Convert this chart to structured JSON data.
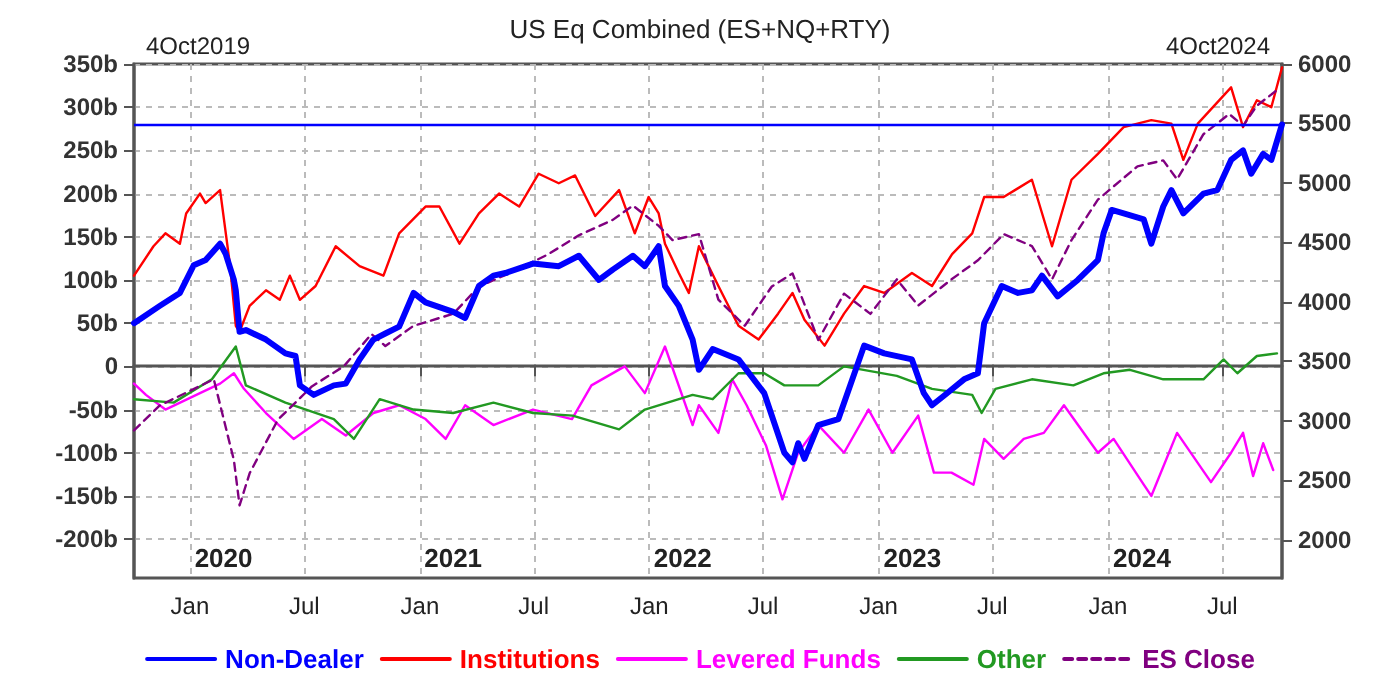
{
  "chart_data": {
    "type": "line",
    "title": "US Eq Combined (ES+NQ+RTY)",
    "xlim": [
      "2019-10-04",
      "2024-10-04"
    ],
    "xticks": [
      {
        "value": "2020-01-01",
        "label": "Jan"
      },
      {
        "value": "2020-07-01",
        "label": "Jul"
      },
      {
        "value": "2021-01-01",
        "label": "Jan"
      },
      {
        "value": "2021-07-01",
        "label": "Jul"
      },
      {
        "value": "2022-01-01",
        "label": "Jan"
      },
      {
        "value": "2022-07-01",
        "label": "Jul"
      },
      {
        "value": "2023-01-01",
        "label": "Jan"
      },
      {
        "value": "2023-07-01",
        "label": "Jul"
      },
      {
        "value": "2024-01-01",
        "label": "Jan"
      },
      {
        "value": "2024-07-01",
        "label": "Jul"
      }
    ],
    "ylim": [
      -245,
      350
    ],
    "yticks": [
      {
        "value": -200,
        "label": "-200b"
      },
      {
        "value": -150,
        "label": "-150b"
      },
      {
        "value": -100,
        "label": "-100b"
      },
      {
        "value": -50,
        "label": "-50b"
      },
      0,
      {
        "value": 50,
        "label": "50b"
      },
      {
        "value": 100,
        "label": "100b"
      },
      {
        "value": 150,
        "label": "150b"
      },
      {
        "value": 200,
        "label": "200b"
      },
      {
        "value": 250,
        "label": "250b"
      },
      {
        "value": 300,
        "label": "300b"
      },
      {
        "value": 350,
        "label": "350b"
      }
    ],
    "y2lim": [
      1680,
      6000
    ],
    "y2ticks": [
      2000,
      2500,
      3000,
      3500,
      4000,
      4500,
      5000,
      5500,
      6000
    ],
    "grid": true,
    "legend": "bottom",
    "marker": "none",
    "ref_lines": [
      {
        "axis": "y",
        "value": 280,
        "label": null,
        "color": "#0000ff"
      }
    ],
    "annotations": [
      "4Oct2019",
      "4Oct2024",
      "2020",
      "2021",
      "2022",
      "2023",
      "2024"
    ],
    "series": [
      {
        "name": "Non-Dealer",
        "color": "#0000ff",
        "x": [
          "2019-10-04",
          "2019-11-14",
          "2019-12-16",
          "2020-01-07",
          "2020-01-26",
          "2020-02-18",
          "2020-02-27",
          "2020-03-11",
          "2020-03-14",
          "2020-03-20",
          "2020-03-30",
          "2020-05-01",
          "2020-06-01",
          "2020-06-17",
          "2020-06-24",
          "2020-07-16",
          "2020-08-17",
          "2020-09-05",
          "2020-09-27",
          "2020-10-19",
          "2020-11-07",
          "2020-11-29",
          "2020-12-22",
          "2021-01-10",
          "2021-02-23",
          "2021-03-14",
          "2021-04-05",
          "2021-04-28",
          "2021-05-17",
          "2021-06-30",
          "2021-08-10",
          "2021-09-11",
          "2021-10-13",
          "2021-11-04",
          "2021-12-06",
          "2021-12-25",
          "2022-01-16",
          "2022-01-26",
          "2022-02-17",
          "2022-03-11",
          "2022-03-21",
          "2022-04-12",
          "2022-05-23",
          "2022-07-03",
          "2022-08-04",
          "2022-08-17",
          "2022-08-26",
          "2022-09-05",
          "2022-09-27",
          "2022-10-29",
          "2022-12-09",
          "2023-01-10",
          "2023-02-23",
          "2023-03-14",
          "2023-03-27",
          "2023-04-15",
          "2023-05-17",
          "2023-06-08",
          "2023-06-18",
          "2023-07-16",
          "2023-08-11",
          "2023-09-02",
          "2023-09-18",
          "2023-10-13",
          "2023-11-14",
          "2023-12-16",
          "2023-12-25",
          "2024-01-07",
          "2024-01-26",
          "2024-02-27",
          "2024-03-10",
          "2024-03-29",
          "2024-04-11",
          "2024-04-30",
          "2024-06-01",
          "2024-06-23",
          "2024-07-15",
          "2024-08-03",
          "2024-08-16",
          "2024-09-04",
          "2024-09-17",
          "2024-10-04"
        ],
        "values": [
          50,
          70,
          85,
          117,
          123,
          142,
          130,
          100,
          88,
          40,
          42,
          31,
          15,
          12,
          -22,
          -33,
          -22,
          -20,
          8,
          31,
          38,
          46,
          85,
          74,
          63,
          56,
          93,
          105,
          108,
          119,
          116,
          128,
          100,
          112,
          128,
          116,
          139,
          93,
          70,
          31,
          -4,
          20,
          8,
          -31,
          -100,
          -111,
          -89,
          -107,
          -68,
          -61,
          24,
          15,
          8,
          -31,
          -45,
          -34,
          -15,
          -8,
          50,
          93,
          85,
          88,
          105,
          81,
          100,
          123,
          154,
          181,
          177,
          170,
          142,
          185,
          204,
          177,
          200,
          204,
          239,
          250,
          223,
          246,
          239,
          280
        ]
      },
      {
        "name": "Institutions",
        "color": "#ff0000",
        "x": [
          "2019-10-04",
          "2019-11-04",
          "2019-11-23",
          "2019-12-16",
          "2019-12-26",
          "2020-01-17",
          "2020-01-26",
          "2020-02-18",
          "2020-03-05",
          "2020-03-14",
          "2020-03-20",
          "2020-04-05",
          "2020-05-01",
          "2020-05-23",
          "2020-06-08",
          "2020-06-24",
          "2020-07-19",
          "2020-08-20",
          "2020-09-27",
          "2020-11-04",
          "2020-11-29",
          "2021-01-10",
          "2021-02-01",
          "2021-03-05",
          "2021-04-05",
          "2021-05-07",
          "2021-06-08",
          "2021-07-09",
          "2021-08-10",
          "2021-09-05",
          "2021-10-07",
          "2021-11-14",
          "2021-12-09",
          "2021-12-31",
          "2022-01-16",
          "2022-01-26",
          "2022-02-17",
          "2022-03-05",
          "2022-03-21",
          "2022-04-21",
          "2022-05-23",
          "2022-06-24",
          "2022-07-25",
          "2022-08-17",
          "2022-09-05",
          "2022-10-07",
          "2022-11-07",
          "2022-12-09",
          "2023-01-10",
          "2023-02-23",
          "2023-03-27",
          "2023-04-28",
          "2023-05-30",
          "2023-06-18",
          "2023-07-19",
          "2023-09-02",
          "2023-10-04",
          "2023-11-04",
          "2023-12-16",
          "2024-01-26",
          "2024-03-10",
          "2024-04-11",
          "2024-04-30",
          "2024-05-23",
          "2024-07-15",
          "2024-08-03",
          "2024-08-25",
          "2024-09-17",
          "2024-10-04"
        ],
        "values": [
          105,
          139,
          154,
          142,
          177,
          200,
          189,
          204,
          116,
          47,
          40,
          70,
          88,
          77,
          105,
          77,
          93,
          139,
          116,
          105,
          154,
          185,
          185,
          142,
          177,
          200,
          185,
          223,
          212,
          221,
          174,
          204,
          154,
          196,
          177,
          142,
          108,
          85,
          139,
          93,
          47,
          31,
          61,
          85,
          54,
          24,
          61,
          93,
          85,
          108,
          93,
          130,
          154,
          196,
          196,
          216,
          139,
          216,
          246,
          277,
          285,
          281,
          239,
          281,
          323,
          277,
          308,
          300,
          346
        ]
      },
      {
        "name": "Levered Funds",
        "color": "#ff00ff",
        "x": [
          "2019-10-04",
          "2019-10-23",
          "2019-11-23",
          "2020-01-17",
          "2020-02-18",
          "2020-03-11",
          "2020-03-27",
          "2020-05-01",
          "2020-06-14",
          "2020-07-29",
          "2020-09-05",
          "2020-10-19",
          "2020-11-29",
          "2021-01-10",
          "2021-02-11",
          "2021-03-14",
          "2021-04-28",
          "2021-06-30",
          "2021-08-31",
          "2021-10-01",
          "2021-11-23",
          "2021-12-25",
          "2022-01-26",
          "2022-03-11",
          "2022-03-21",
          "2022-04-21",
          "2022-05-13",
          "2022-06-05",
          "2022-07-06",
          "2022-08-01",
          "2022-08-26",
          "2022-09-27",
          "2022-11-07",
          "2022-12-16",
          "2023-01-23",
          "2023-03-05",
          "2023-03-30",
          "2023-04-27",
          "2023-06-01",
          "2023-06-18",
          "2023-07-19",
          "2023-08-20",
          "2023-09-21",
          "2023-10-23",
          "2023-12-16",
          "2024-01-10",
          "2024-02-27",
          "2024-03-10",
          "2024-04-20",
          "2024-06-13",
          "2024-07-15",
          "2024-08-03",
          "2024-08-19",
          "2024-09-04",
          "2024-09-20"
        ],
        "values": [
          -20,
          -33,
          -50,
          -31,
          -20,
          -8,
          -26,
          -54,
          -84,
          -61,
          -80,
          -54,
          -45,
          -61,
          -84,
          -45,
          -68,
          -50,
          -61,
          -22,
          0,
          -31,
          23,
          -68,
          -45,
          -77,
          -15,
          -45,
          -92,
          -154,
          -100,
          -68,
          -100,
          -50,
          -100,
          -57,
          -123,
          -123,
          -137,
          -84,
          -107,
          -84,
          -77,
          -45,
          -100,
          -84,
          -137,
          -150,
          -77,
          -134,
          -100,
          -77,
          -127,
          -89,
          -120
        ]
      },
      {
        "name": "Other",
        "color": "#229922",
        "x": [
          "2019-10-04",
          "2019-12-06",
          "2020-02-05",
          "2020-03-14",
          "2020-03-30",
          "2020-06-01",
          "2020-08-17",
          "2020-09-18",
          "2020-10-29",
          "2020-12-22",
          "2021-02-23",
          "2021-04-28",
          "2021-06-30",
          "2021-09-01",
          "2021-11-14",
          "2021-12-25",
          "2022-03-11",
          "2022-04-12",
          "2022-05-23",
          "2022-07-03",
          "2022-08-04",
          "2022-09-27",
          "2022-11-07",
          "2023-01-30",
          "2023-03-27",
          "2023-05-30",
          "2023-06-14",
          "2023-07-06",
          "2023-09-02",
          "2023-11-07",
          "2023-12-25",
          "2024-02-05",
          "2024-03-29",
          "2024-06-01",
          "2024-07-03",
          "2024-07-25",
          "2024-08-25",
          "2024-09-26"
        ],
        "values": [
          -38,
          -42,
          -15,
          23,
          -22,
          -42,
          -61,
          -84,
          -38,
          -50,
          -54,
          -42,
          -54,
          -57,
          -73,
          -50,
          -33,
          -38,
          -8,
          -8,
          -22,
          -22,
          0,
          -11,
          -26,
          -33,
          -54,
          -26,
          -15,
          -22,
          -8,
          -4,
          -15,
          -15,
          8,
          -8,
          12,
          15
        ]
      },
      {
        "name": "ES Close",
        "color": "#800080",
        "axis": "y2",
        "line_style": "dashed",
        "x": [
          "2019-10-04",
          "2019-11-14",
          "2020-02-08",
          "2020-03-11",
          "2020-03-20",
          "2020-04-05",
          "2020-05-20",
          "2020-07-13",
          "2020-09-02",
          "2020-10-16",
          "2020-11-07",
          "2020-12-22",
          "2021-02-23",
          "2021-04-05",
          "2021-05-23",
          "2021-07-24",
          "2021-09-11",
          "2021-11-04",
          "2021-12-06",
          "2022-01-16",
          "2022-02-07",
          "2022-03-21",
          "2022-04-21",
          "2022-06-02",
          "2022-07-15",
          "2022-08-17",
          "2022-09-27",
          "2022-11-07",
          "2022-12-19",
          "2023-01-30",
          "2023-03-05",
          "2023-04-27",
          "2023-06-08",
          "2023-07-19",
          "2023-09-02",
          "2023-10-04",
          "2023-11-04",
          "2023-12-16",
          "2024-02-17",
          "2024-03-29",
          "2024-04-20",
          "2024-06-01",
          "2024-07-12",
          "2024-08-03",
          "2024-08-25",
          "2024-09-26"
        ],
        "values": [
          2920,
          3130,
          3350,
          2670,
          2290,
          2560,
          3010,
          3290,
          3460,
          3730,
          3630,
          3800,
          3900,
          4130,
          4240,
          4400,
          4560,
          4690,
          4810,
          4640,
          4520,
          4570,
          4020,
          3800,
          4130,
          4240,
          3680,
          4070,
          3900,
          4190,
          3970,
          4190,
          4350,
          4570,
          4470,
          4190,
          4520,
          4860,
          5140,
          5190,
          5030,
          5410,
          5580,
          5480,
          5650,
          5780
        ]
      }
    ]
  }
}
